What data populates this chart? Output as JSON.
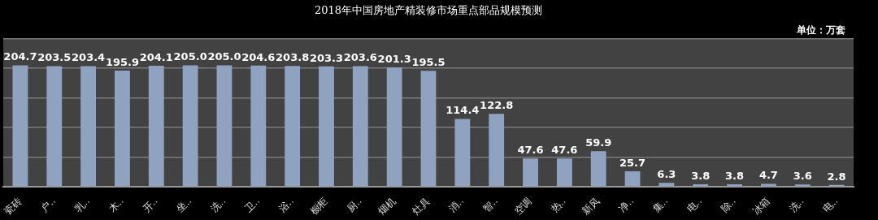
{
  "chart_data": {
    "type": "bar",
    "title": "2018年中国房地产精装修市场重点部品规模预测",
    "annotations": [
      "单位：万套"
    ],
    "categories": [
      "瓷砖",
      "户..",
      "乳..",
      "木..",
      "开..",
      "坐..",
      "洗..",
      "卫..",
      "浴..",
      "橱柜",
      "厨..",
      "烟机",
      "灶具",
      "消..",
      "智..",
      "空调",
      "热..",
      "新风",
      "净..",
      "集..",
      "电..",
      "除..",
      "冰箱",
      "洗..",
      "电.."
    ],
    "values": [
      204.7,
      203.5,
      203.4,
      195.9,
      204.1,
      205.0,
      205.0,
      204.6,
      203.8,
      203.3,
      203.6,
      201.3,
      195.5,
      114.4,
      122.8,
      47.6,
      47.6,
      59.9,
      25.7,
      6.3,
      3.8,
      3.8,
      4.7,
      3.6,
      2.8
    ],
    "value_labels": [
      "204.7",
      "203.5",
      "203.4",
      "195.9",
      "204.1",
      "205.0",
      "205.0",
      "204.6",
      "203.8",
      "203.3",
      "203.6",
      "201.3",
      "195.5",
      "114.4",
      "122.8",
      "47.6",
      "47.6",
      "59.9",
      "25.7",
      "6.3",
      "3.8",
      "3.8",
      "4.7",
      "3.6",
      "2.8"
    ],
    "color": "#8fa3c0",
    "ylim": [
      0,
      250
    ],
    "yticks": [
      {
        "value": 0,
        "label": null
      },
      {
        "value": 50,
        "label": null
      },
      {
        "value": 100,
        "label": null
      },
      {
        "value": 150,
        "label": null
      },
      {
        "value": 200,
        "label": null
      },
      {
        "value": 250,
        "label": null
      }
    ],
    "tick_labels": "x",
    "grid": "y",
    "legend": false
  }
}
